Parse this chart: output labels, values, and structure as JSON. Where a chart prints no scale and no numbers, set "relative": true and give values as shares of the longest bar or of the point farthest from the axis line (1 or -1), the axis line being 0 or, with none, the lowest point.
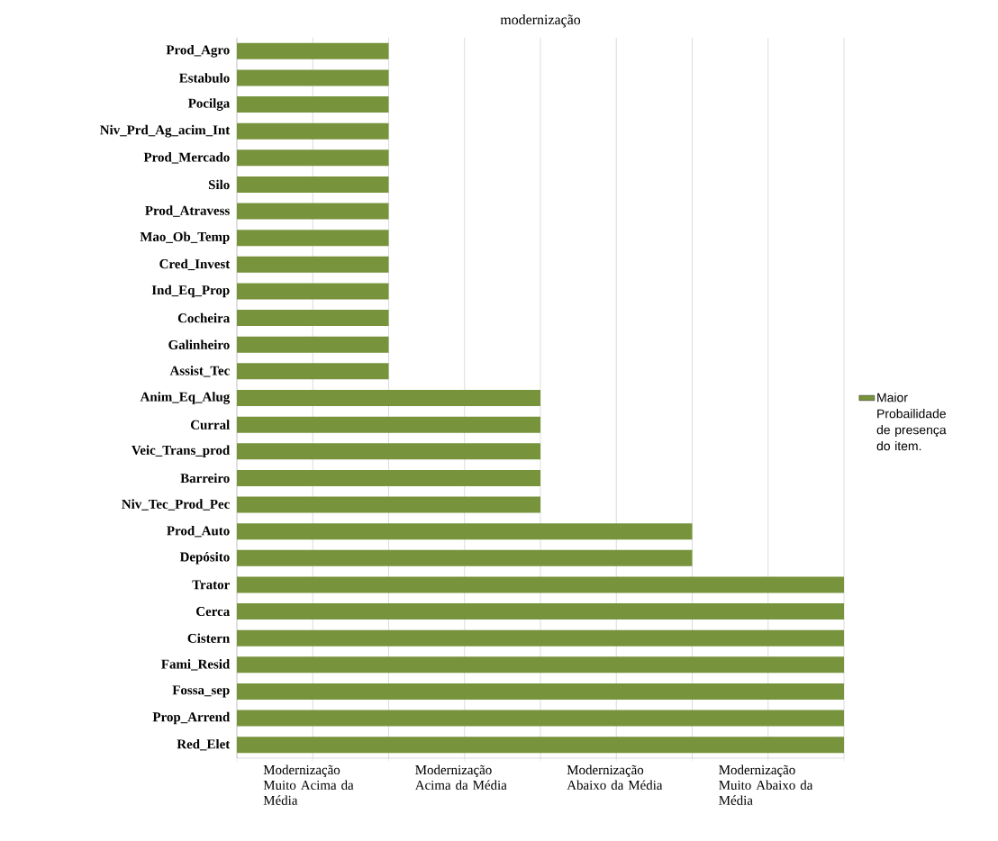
{
  "chart_data": {
    "type": "bar",
    "orientation": "horizontal",
    "title": "modernização",
    "relative": true,
    "categories": [
      "Prod_Agro",
      "Estabulo",
      "Pocilga",
      "Niv_Prd_Ag_acim_Int",
      "Prod_Mercado",
      "Silo",
      "Prod_Atravess",
      "Mao_Ob_Temp",
      "Cred_Invest",
      "Ind_Eq_Prop",
      "Cocheira",
      "Galinheiro",
      "Assist_Tec",
      "Anim_Eq_Alug",
      "Curral",
      "Veic_Trans_prod",
      "Barreiro",
      "Niv_Tec_Prod_Pec",
      "Prod_Auto",
      "Depósito",
      "Trator",
      "Cerca",
      "Cistern",
      "Fami_Resid",
      "Fossa_sep",
      "Prop_Arrend",
      "Red_Elet"
    ],
    "series": [
      {
        "name": "Maior Probailidade de presença do item.",
        "color": "#77933c",
        "values": [
          0.25,
          0.25,
          0.25,
          0.25,
          0.25,
          0.25,
          0.25,
          0.25,
          0.25,
          0.25,
          0.25,
          0.25,
          0.25,
          0.5,
          0.5,
          0.5,
          0.5,
          0.5,
          0.75,
          0.75,
          1,
          1,
          1,
          1,
          1,
          1,
          1
        ]
      }
    ],
    "annotations": [
      "Modernização Muito Acima da Média",
      "Modernização Acima da Média",
      "Modernização Abaixo da Média",
      "Modernização Muito Abaixo da Média"
    ],
    "grid": "x",
    "legend": "right"
  }
}
